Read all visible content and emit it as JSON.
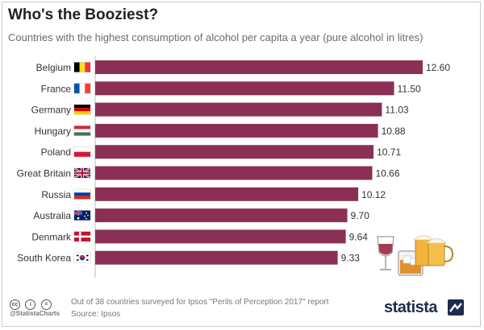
{
  "header": {
    "title": "Who's the Booziest?",
    "subtitle": "Countries with the highest consumption of alcohol per capita a year (pure alcohol in litres)"
  },
  "chart_data": {
    "type": "bar",
    "orientation": "horizontal",
    "categories": [
      "Belgium",
      "France",
      "Germany",
      "Hungary",
      "Poland",
      "Great Britain",
      "Russia",
      "Australia",
      "Denmark",
      "South Korea"
    ],
    "values": [
      12.6,
      11.5,
      11.03,
      10.88,
      10.71,
      10.66,
      10.12,
      9.7,
      9.64,
      9.33
    ],
    "labels": [
      "12.60",
      "11.50",
      "11.03",
      "10.88",
      "10.71",
      "10.66",
      "10.12",
      "9.70",
      "9.64",
      "9.33"
    ],
    "flags": [
      "belgium-flag",
      "france-flag",
      "germany-flag",
      "hungary-flag",
      "poland-flag",
      "great-britain-flag",
      "russia-flag",
      "australia-flag",
      "denmark-flag",
      "south-korea-flag"
    ],
    "xlim": [
      0,
      12.6
    ],
    "bar_color": "#8c2f55",
    "title": "Who's the Booziest?",
    "xlabel": "",
    "ylabel": ""
  },
  "footer": {
    "note": "Out of 38 countries surveyed for Ipsos \"Perils of Perception 2017\" report",
    "source": "Source: Ipsos",
    "handle": "@StatistaCharts",
    "brand": "statista",
    "license_icons": [
      "cc",
      "i",
      "="
    ]
  }
}
